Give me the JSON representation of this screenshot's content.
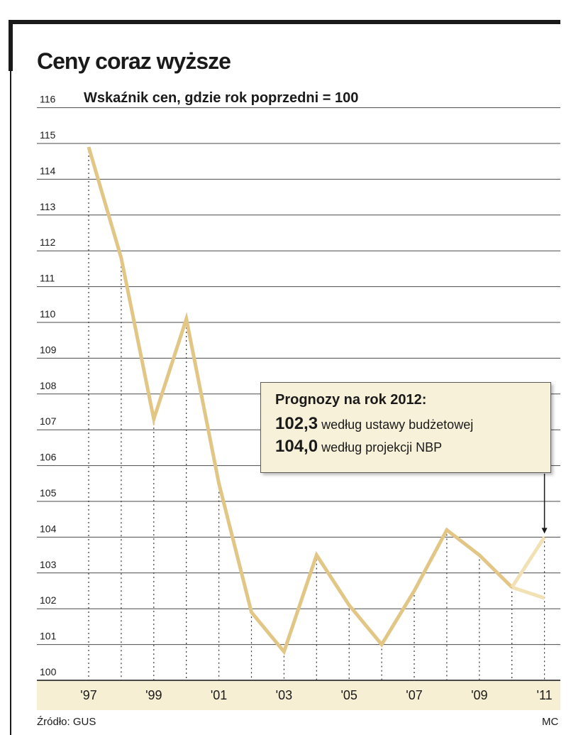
{
  "title": "Ceny coraz wyższe",
  "subtitle": "Wskaźnik cen, gdzie rok poprzedni = 100",
  "callout": {
    "heading": "Prognozy na rok 2012:",
    "rows": [
      {
        "value": "102,3",
        "label": "według ustawy budżetowej"
      },
      {
        "value": "104,0",
        "label": "według projekcji NBP"
      }
    ]
  },
  "source": "Źródło: GUS",
  "credit": "MC",
  "colors": {
    "line": "#e2c685",
    "forecast": "#f1e1b5",
    "band": "#f7efd3",
    "grid": "#4a4a4a"
  },
  "chart_data": {
    "type": "line",
    "title": "Ceny coraz wyższe",
    "subtitle": "Wskaźnik cen, gdzie rok poprzedni = 100",
    "ylim": [
      100,
      116
    ],
    "yticks": [
      100,
      101,
      102,
      103,
      104,
      105,
      106,
      107,
      108,
      109,
      110,
      111,
      112,
      113,
      114,
      115,
      116
    ],
    "xlim": [
      1997,
      2011
    ],
    "xticks": [
      {
        "x": 1997,
        "label": "'97"
      },
      {
        "x": 1999,
        "label": "'99"
      },
      {
        "x": 2001,
        "label": "'01"
      },
      {
        "x": 2003,
        "label": "'03"
      },
      {
        "x": 2005,
        "label": "'05"
      },
      {
        "x": 2007,
        "label": "'07"
      },
      {
        "x": 2009,
        "label": "'09"
      },
      {
        "x": 2011,
        "label": "'11"
      }
    ],
    "grid": true,
    "series": [
      {
        "x": [
          1997,
          1998,
          1999,
          2000,
          2001,
          2002,
          2003,
          2004,
          2005,
          2006,
          2007,
          2008,
          2009,
          2010
        ],
        "values": [
          114.9,
          111.8,
          107.3,
          110.1,
          105.5,
          101.9,
          100.8,
          103.5,
          102.1,
          101.0,
          102.5,
          104.2,
          103.5,
          102.6
        ]
      },
      {
        "x": [
          2010,
          2011
        ],
        "values": [
          102.6,
          104.0
        ]
      },
      {
        "x": [
          2010,
          2011
        ],
        "values": [
          102.6,
          102.3
        ]
      }
    ]
  }
}
